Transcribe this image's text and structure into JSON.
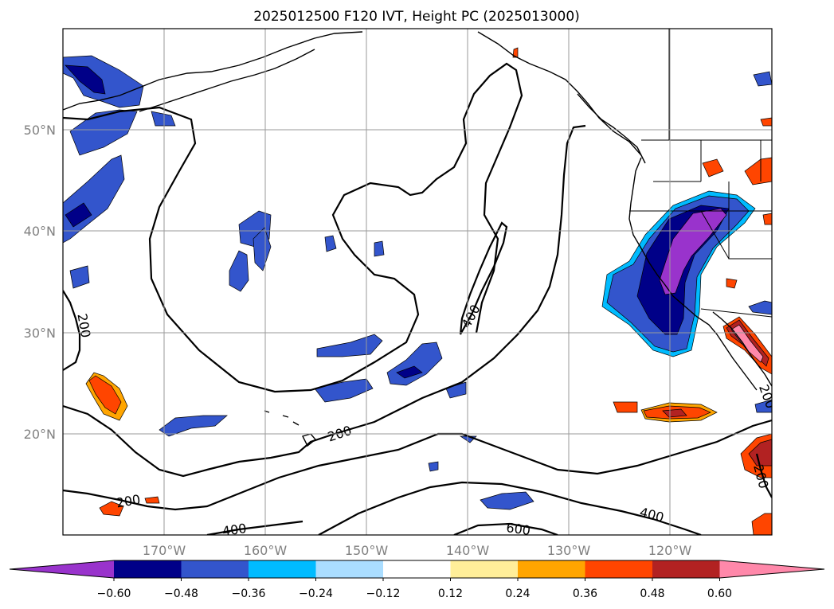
{
  "chart_data": {
    "type": "heatmap",
    "title": "2025012500 F120 IVT, Height PC (2025013000)",
    "projection": "map",
    "lon_range": [
      -180,
      -110
    ],
    "lat_range": [
      10,
      60
    ],
    "x_ticks": [
      "170°W",
      "160°W",
      "150°W",
      "140°W",
      "130°W",
      "120°W"
    ],
    "y_ticks": [
      "20°N",
      "30°N",
      "40°N",
      "50°N"
    ],
    "grid": true,
    "colorbar": {
      "orientation": "horizontal",
      "ticks": [
        "−0.60",
        "−0.48",
        "−0.36",
        "−0.24",
        "−0.12",
        "0.12",
        "0.24",
        "0.36",
        "0.48",
        "0.60"
      ],
      "levels": [
        -0.6,
        -0.48,
        -0.36,
        -0.24,
        -0.12,
        0.12,
        0.24,
        0.36,
        0.48,
        0.6
      ],
      "colors": [
        "#9933cc",
        "#000088",
        "#3355cc",
        "#00bbff",
        "#aaddff",
        "#ffffff",
        "#ffee99",
        "#ffa500",
        "#ff4500",
        "#b22222",
        "#ff88aa"
      ],
      "extend": "both"
    },
    "contour_labels": [
      "200",
      "200",
      "200",
      "200",
      "200",
      "400",
      "400",
      "400",
      "600"
    ]
  }
}
